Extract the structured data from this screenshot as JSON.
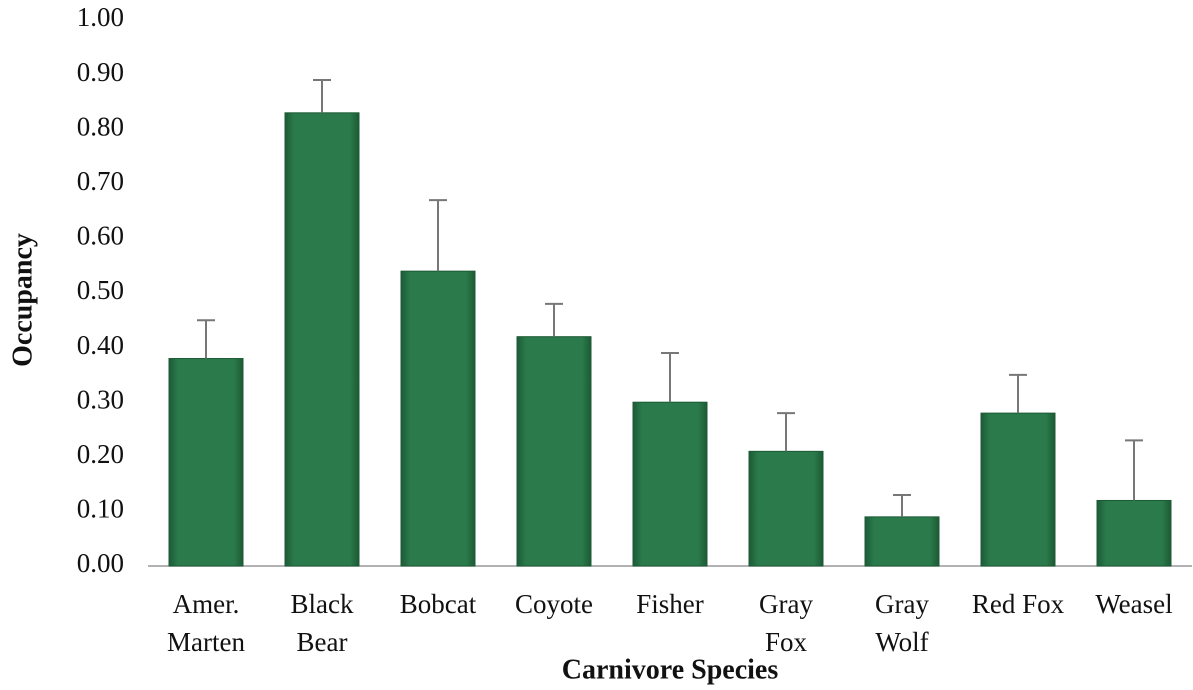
{
  "chart_data": {
    "type": "bar",
    "y_label": "Occupancy",
    "x_label": "Carnivore Species",
    "categories": [
      "Amer.\nMarten",
      "Black\nBear",
      "Bobcat",
      "Coyote",
      "Fisher",
      "Gray\nFox",
      "Gray\nWolf",
      "Red Fox",
      "Weasel"
    ],
    "values": [
      0.38,
      0.83,
      0.54,
      0.42,
      0.3,
      0.21,
      0.09,
      0.28,
      0.12
    ],
    "errors": [
      0.07,
      0.06,
      0.13,
      0.06,
      0.09,
      0.07,
      0.04,
      0.07,
      0.11
    ],
    "color": "#2b7a4b",
    "ylim": [
      0,
      1
    ],
    "yticks": [
      {
        "value": 0,
        "label": "0.00"
      },
      {
        "value": 0.1,
        "label": "0.10"
      },
      {
        "value": 0.2,
        "label": "0.20"
      },
      {
        "value": 0.3,
        "label": "0.30"
      },
      {
        "value": 0.4,
        "label": "0.40"
      },
      {
        "value": 0.5,
        "label": "0.50"
      },
      {
        "value": 0.6,
        "label": "0.60"
      },
      {
        "value": 0.7,
        "label": "0.70"
      },
      {
        "value": 0.8,
        "label": "0.80"
      },
      {
        "value": 0.9,
        "label": "0.90"
      },
      {
        "value": 1,
        "label": "1.00"
      }
    ],
    "grid": false
  }
}
